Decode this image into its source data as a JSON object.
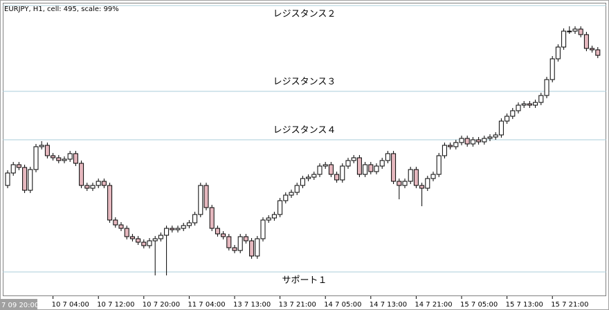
{
  "chart_data": {
    "type": "candlestick",
    "title": "EURJPY, H1, cell: 495, scale: 99%",
    "up_color": "#ffffff",
    "down_color": "#e6b8bf",
    "line_color": "#000000",
    "level_color": "#a8ccd8",
    "ylim": [
      0,
      424
    ],
    "levels": [
      {
        "label": "レジスタンス２",
        "value": 420
      },
      {
        "label": "レジスタンス３",
        "value": 296
      },
      {
        "label": "レジスタンス４",
        "value": 226
      },
      {
        "label": "サポート１",
        "value": 35
      }
    ],
    "categories": [
      "7 09 20:00",
      null,
      null,
      null,
      null,
      null,
      null,
      null,
      "10 7 04:00",
      null,
      null,
      null,
      null,
      null,
      null,
      null,
      "10 7 12:00",
      null,
      null,
      null,
      null,
      null,
      null,
      null,
      "10 7 20:00",
      null,
      null,
      null,
      null,
      null,
      null,
      null,
      "11 7 04:00",
      null,
      null,
      null,
      null,
      null,
      null,
      null,
      "13 7 13:00",
      null,
      null,
      null,
      null,
      null,
      null,
      null,
      "13 7 21:00",
      null,
      null,
      null,
      null,
      null,
      null,
      null,
      "14 7 05:00",
      null,
      null,
      null,
      null,
      null,
      null,
      null,
      "14 7 13:00",
      null,
      null,
      null,
      null,
      null,
      null,
      null,
      "14 7 21:00",
      null,
      null,
      null,
      null,
      null,
      null,
      null,
      "15 7 05:00",
      null,
      null,
      null,
      null,
      null,
      null,
      null,
      "15 7 13:00",
      null,
      null,
      null,
      null,
      null,
      null,
      null,
      "15 7 21:00",
      null,
      null,
      null,
      null,
      null,
      null,
      null,
      null
    ],
    "open": [
      160,
      178,
      190,
      186,
      153,
      183,
      216,
      218,
      203,
      200,
      196,
      198,
      206,
      192,
      160,
      156,
      160,
      166,
      160,
      110,
      103,
      98,
      86,
      83,
      78,
      73,
      80,
      83,
      88,
      98,
      96,
      98,
      102,
      106,
      118,
      160,
      128,
      98,
      90,
      86,
      70,
      66,
      86,
      80,
      58,
      83,
      110,
      113,
      118,
      138,
      146,
      150,
      160,
      170,
      172,
      176,
      188,
      190,
      176,
      168,
      188,
      196,
      200,
      176,
      190,
      180,
      188,
      196,
      206,
      166,
      160,
      166,
      183,
      160,
      156,
      170,
      176,
      203,
      218,
      216,
      222,
      228,
      220,
      226,
      223,
      228,
      230,
      233,
      253,
      260,
      268,
      276,
      278,
      276,
      280,
      290,
      313,
      343,
      360,
      383,
      383,
      386,
      378,
      358,
      356
    ],
    "high": [
      182,
      194,
      194,
      190,
      187,
      220,
      224,
      222,
      207,
      204,
      202,
      210,
      210,
      196,
      164,
      164,
      170,
      170,
      164,
      114,
      107,
      102,
      90,
      87,
      82,
      84,
      87,
      92,
      102,
      102,
      102,
      106,
      110,
      122,
      164,
      164,
      132,
      102,
      94,
      90,
      74,
      90,
      90,
      84,
      87,
      114,
      117,
      122,
      142,
      150,
      154,
      164,
      174,
      176,
      180,
      192,
      194,
      194,
      180,
      192,
      200,
      204,
      204,
      194,
      194,
      192,
      200,
      210,
      210,
      170,
      170,
      187,
      187,
      164,
      174,
      180,
      207,
      222,
      222,
      226,
      232,
      232,
      230,
      230,
      232,
      234,
      237,
      257,
      264,
      272,
      280,
      282,
      282,
      284,
      294,
      317,
      347,
      364,
      387,
      390,
      390,
      390,
      382,
      362,
      360
    ],
    "low": [
      156,
      174,
      182,
      149,
      149,
      179,
      212,
      199,
      196,
      192,
      192,
      194,
      188,
      156,
      152,
      152,
      156,
      156,
      106,
      99,
      94,
      82,
      79,
      74,
      69,
      69,
      30,
      79,
      30,
      92,
      92,
      94,
      98,
      102,
      114,
      124,
      94,
      86,
      82,
      66,
      62,
      62,
      76,
      54,
      54,
      79,
      106,
      109,
      114,
      134,
      142,
      146,
      156,
      166,
      168,
      172,
      184,
      172,
      164,
      164,
      184,
      192,
      172,
      172,
      176,
      176,
      184,
      192,
      162,
      140,
      156,
      162,
      156,
      130,
      152,
      166,
      172,
      199,
      212,
      212,
      218,
      216,
      216,
      219,
      219,
      224,
      226,
      229,
      249,
      256,
      264,
      272,
      272,
      272,
      276,
      286,
      309,
      339,
      356,
      379,
      379,
      374,
      354,
      352,
      344
    ],
    "close": [
      178,
      190,
      186,
      153,
      183,
      216,
      218,
      203,
      200,
      196,
      198,
      206,
      192,
      160,
      156,
      160,
      166,
      160,
      110,
      103,
      98,
      86,
      83,
      78,
      73,
      80,
      83,
      88,
      98,
      96,
      98,
      102,
      106,
      118,
      160,
      128,
      98,
      90,
      86,
      70,
      66,
      86,
      80,
      58,
      83,
      110,
      113,
      118,
      138,
      146,
      150,
      160,
      170,
      172,
      176,
      188,
      190,
      176,
      168,
      188,
      196,
      200,
      176,
      190,
      180,
      188,
      196,
      206,
      166,
      160,
      166,
      183,
      160,
      156,
      170,
      176,
      203,
      218,
      216,
      222,
      228,
      220,
      226,
      223,
      228,
      230,
      233,
      253,
      260,
      268,
      276,
      278,
      276,
      280,
      290,
      313,
      343,
      360,
      383,
      383,
      386,
      378,
      358,
      356,
      348
    ]
  }
}
